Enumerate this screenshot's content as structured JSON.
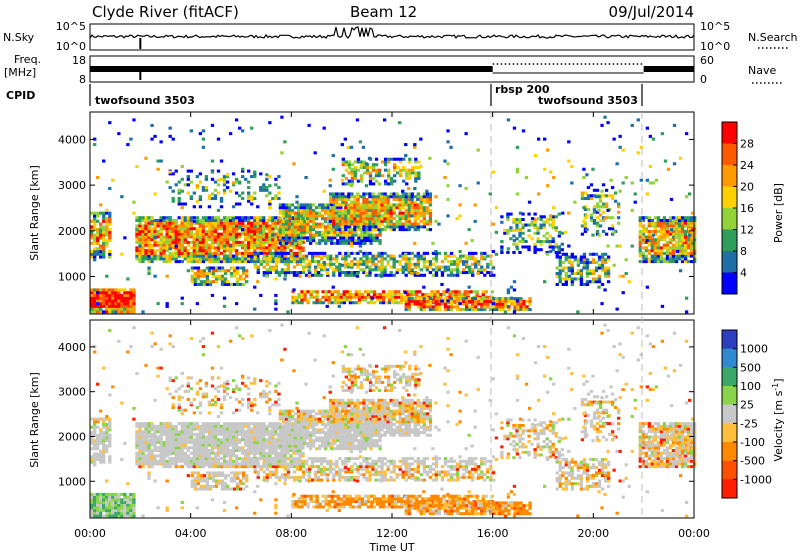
{
  "header": {
    "station": "Clyde River (fitACF)",
    "beam": "Beam 12",
    "date": "09/Jul/2014"
  },
  "panels": {
    "nsky_label": "N.Sky",
    "nsearch_label": "N.Search",
    "nsky_ticks": [
      "10^5",
      "10^0"
    ],
    "nsearch_ticks": [
      "10^5",
      "10^0"
    ],
    "freq_label_1": "Freq.",
    "freq_label_2": "[MHz]",
    "freq_ticks": [
      "18",
      "8"
    ],
    "nave_label": "Nave",
    "nave_ticks": [
      "60",
      "0"
    ],
    "cpid_label": "CPID",
    "cpid_segments": [
      {
        "name": "twofsound 3503"
      },
      {
        "name": "rbsp 200"
      },
      {
        "name": "twofsound 3503"
      }
    ]
  },
  "chart_data": [
    {
      "type": "heatmap",
      "name": "Power",
      "ylabel": "Slant Range [km]",
      "ylim": [
        180,
        4600
      ],
      "yticks": [
        1000,
        2000,
        3000,
        4000
      ],
      "xlim_hours": [
        0,
        24
      ],
      "colorbar": {
        "label": "Power [dB]",
        "ticks": [
          "28",
          "24",
          "20",
          "16",
          "12",
          "8",
          "4"
        ],
        "colors": [
          "#ff0000",
          "#ff5a00",
          "#ff9a00",
          "#ffd000",
          "#93d33a",
          "#2f9e5b",
          "#1e6ea8",
          "#0000ff"
        ]
      }
    },
    {
      "type": "heatmap",
      "name": "Velocity",
      "ylabel": "Slant Range [km]",
      "ylim": [
        180,
        4600
      ],
      "yticks": [
        1000,
        2000,
        3000,
        4000
      ],
      "xlim_hours": [
        0,
        24
      ],
      "xlabel": "Time UT",
      "xticks": [
        "00:00",
        "04:00",
        "08:00",
        "12:00",
        "16:00",
        "20:00",
        "00:00"
      ],
      "colorbar": {
        "label": "Velocity [m s^-1]",
        "ticks": [
          "1000",
          "500",
          "100",
          "25",
          "-25",
          "-100",
          "-500",
          "-1000"
        ],
        "colors": [
          "#2b3fbf",
          "#2f8ad0",
          "#3ba86a",
          "#8ad44a",
          "#c8c8c8",
          "#ffbe3c",
          "#ff8a00",
          "#ff5000",
          "#ff1e00"
        ]
      }
    }
  ]
}
